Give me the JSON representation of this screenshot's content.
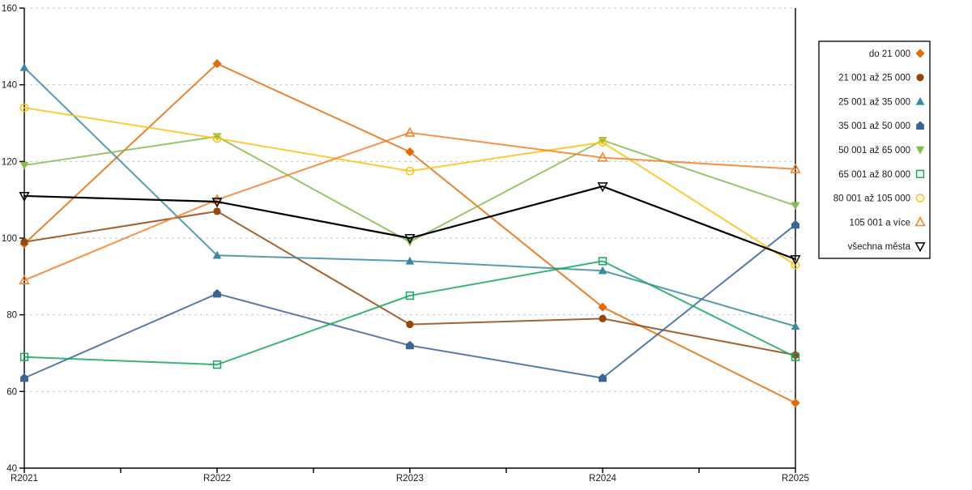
{
  "chart_data": {
    "type": "line",
    "title": "",
    "xlabel": "",
    "ylabel": "",
    "categories": [
      "R2021",
      "R2022",
      "R2023",
      "R2024",
      "R2025"
    ],
    "ylim": [
      40,
      160
    ],
    "y_tick_step": 20,
    "y_tick_labels": [
      "160",
      "140",
      "120",
      "100",
      "80",
      "60",
      "40"
    ],
    "grid": "horizontal-dashed",
    "gridline_color": "#c6c6c6",
    "axis_color": "#000000",
    "legend_position": "right",
    "legend_border_color": "#000000",
    "series": [
      {
        "name": "do 21 000",
        "color": "#e36c09",
        "marker": "diamond",
        "fill": "solid",
        "values": [
          98.5,
          145.5,
          122.5,
          82,
          57
        ]
      },
      {
        "name": "21 001 až 25 000",
        "color": "#93470b",
        "marker": "circle",
        "fill": "solid",
        "values": [
          99,
          107,
          77.5,
          79,
          69.5
        ]
      },
      {
        "name": "25 001 až 35 000",
        "color": "#388aa2",
        "marker": "triangle-up",
        "fill": "solid",
        "values": [
          144.5,
          95.5,
          94,
          91.5,
          77
        ]
      },
      {
        "name": "35 001 až 50 000",
        "color": "#3a6496",
        "marker": "pentagon",
        "fill": "solid",
        "values": [
          63.5,
          85.5,
          72,
          63.5,
          103.5
        ]
      },
      {
        "name": "50 001 až 65 000",
        "color": "#86bb4d",
        "marker": "triangle-down",
        "fill": "solid",
        "values": [
          119,
          126.5,
          99,
          125.5,
          108.5
        ]
      },
      {
        "name": "65 001 až 80 000",
        "color": "#17a75e",
        "marker": "square",
        "fill": "open",
        "values": [
          69,
          67,
          85,
          94,
          69
        ]
      },
      {
        "name": "80 001 až 105 000",
        "color": "#fdc010",
        "marker": "circle",
        "fill": "open",
        "values": [
          134,
          126,
          117.5,
          125,
          93
        ]
      },
      {
        "name": "105 001 a více",
        "color": "#f57e27",
        "marker": "triangle-up",
        "fill": "open",
        "values": [
          89,
          110,
          127.5,
          121,
          118
        ]
      },
      {
        "name": "všechna města",
        "color": "#000000",
        "marker": "triangle-down",
        "fill": "open",
        "values": [
          111,
          109.5,
          100,
          113.5,
          94.5
        ]
      }
    ]
  }
}
